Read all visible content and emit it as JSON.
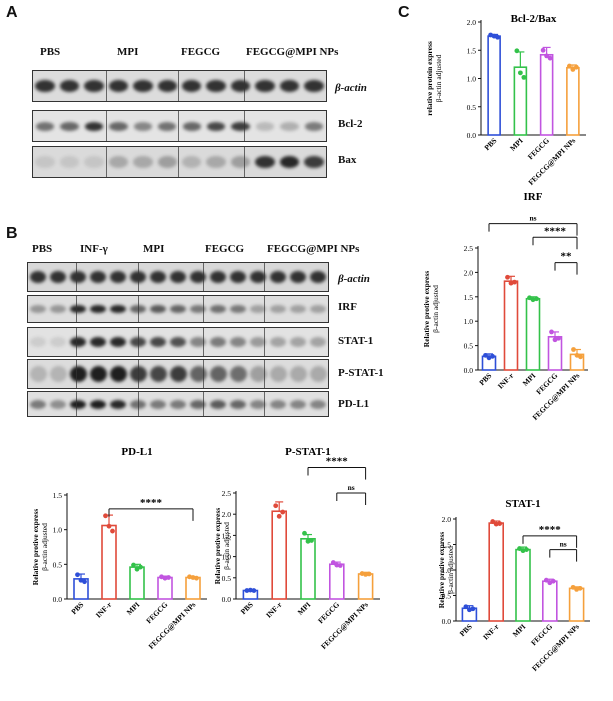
{
  "panels": {
    "a": "A",
    "b": "B",
    "c": "C"
  },
  "panel_a": {
    "groups": [
      "PBS",
      "MPI",
      "FEGCG",
      "FEGCG@MPI NPs"
    ],
    "blots": [
      "β-actin",
      "Bcl-2",
      "Bax"
    ]
  },
  "panel_b": {
    "groups": [
      "PBS",
      "INF-γ",
      "MPI",
      "FEGCG",
      "FEGCG@MPI NPs"
    ],
    "blots": [
      "β-actin",
      "IRF",
      "STAT-1",
      "P-STAT-1",
      "PD-L1"
    ]
  },
  "chart_data": [
    {
      "id": "bcl2bax",
      "type": "bar",
      "title": "Bcl-2/Bax",
      "ylabel": "relative protein express β-actin adjusted",
      "categories": [
        "PBS",
        "MPI",
        "FEGCG",
        "FEGCG@MPI NPs"
      ],
      "values": [
        1.75,
        1.2,
        1.42,
        1.19
      ],
      "errors": [
        0.03,
        0.27,
        0.13,
        0.05
      ],
      "points": [
        [
          1.77,
          1.75,
          1.73
        ],
        [
          1.49,
          1.1,
          1.02
        ],
        [
          1.5,
          1.4,
          1.36
        ],
        [
          1.22,
          1.16,
          1.2
        ]
      ],
      "ylim": [
        0,
        2.0
      ],
      "yticks": [
        0.0,
        0.5,
        1.0,
        1.5,
        2.0
      ],
      "colors": [
        "#2e4fd8",
        "#33c24a",
        "#c155e0",
        "#f5a03c"
      ],
      "significance": []
    },
    {
      "id": "irf",
      "type": "bar",
      "title": "IRF",
      "ylabel": "Relative protive express β-actin adjusted",
      "categories": [
        "PBS",
        "INF-r",
        "MPI",
        "FEGCG",
        "FEGCG@MPI NPs"
      ],
      "values": [
        0.28,
        1.82,
        1.46,
        0.68,
        0.32
      ],
      "errors": [
        0.05,
        0.1,
        0.04,
        0.1,
        0.1
      ],
      "points": [
        [
          0.3,
          0.25,
          0.28
        ],
        [
          1.9,
          1.78,
          1.8
        ],
        [
          1.48,
          1.44,
          1.46
        ],
        [
          0.78,
          0.62,
          0.65
        ],
        [
          0.42,
          0.3,
          0.27
        ]
      ],
      "ylim": [
        0,
        2.5
      ],
      "yticks": [
        0.0,
        0.5,
        1.0,
        1.5,
        2.0,
        2.5
      ],
      "colors": [
        "#2e4fd8",
        "#e04a3a",
        "#33c24a",
        "#c155e0",
        "#f5a03c"
      ],
      "significance": [
        {
          "from": 0,
          "to": 4,
          "label": "ns",
          "y": 3.0
        },
        {
          "from": 2,
          "to": 4,
          "label": "****",
          "y": 2.72
        },
        {
          "from": 3,
          "to": 4,
          "label": "**",
          "y": 2.2
        }
      ]
    },
    {
      "id": "pdl1",
      "type": "bar",
      "title": "PD-L1",
      "ylabel": "Relative protive express β-actin adjusted",
      "categories": [
        "PBS",
        "INF-r",
        "MPI",
        "FEGCG",
        "FEGCG@MPI NPs"
      ],
      "values": [
        0.29,
        1.06,
        0.46,
        0.31,
        0.31
      ],
      "errors": [
        0.07,
        0.15,
        0.04,
        0.02,
        0.01
      ],
      "points": [
        [
          0.35,
          0.27,
          0.25
        ],
        [
          1.2,
          1.05,
          0.98
        ],
        [
          0.49,
          0.43,
          0.46
        ],
        [
          0.32,
          0.3,
          0.31
        ],
        [
          0.32,
          0.31,
          0.3
        ]
      ],
      "ylim": [
        0,
        1.5
      ],
      "yticks": [
        0.0,
        0.5,
        1.0,
        1.5
      ],
      "colors": [
        "#2e4fd8",
        "#e04a3a",
        "#33c24a",
        "#c155e0",
        "#f5a03c"
      ],
      "significance": [
        {
          "from": 1,
          "to": 4,
          "label": "****",
          "y": 1.3
        }
      ]
    },
    {
      "id": "pstat1",
      "type": "bar",
      "title": "P-STAT-1",
      "ylabel": "Relative protive express β-actin adjusted",
      "categories": [
        "PBS",
        "INF-r",
        "MPI",
        "FEGCG",
        "FEGCG@MPI NPs"
      ],
      "values": [
        0.2,
        2.07,
        1.42,
        0.82,
        0.59
      ],
      "errors": [
        0.02,
        0.22,
        0.1,
        0.05,
        0.04
      ],
      "points": [
        [
          0.2,
          0.21,
          0.2
        ],
        [
          2.2,
          1.95,
          2.05
        ],
        [
          1.55,
          1.36,
          1.38
        ],
        [
          0.86,
          0.8,
          0.79
        ],
        [
          0.6,
          0.58,
          0.59
        ]
      ],
      "ylim": [
        0,
        2.5
      ],
      "yticks": [
        0.0,
        0.5,
        1.0,
        1.5,
        2.0,
        2.5
      ],
      "colors": [
        "#2e4fd8",
        "#e04a3a",
        "#33c24a",
        "#c155e0",
        "#f5a03c"
      ],
      "significance": [
        {
          "from": 2,
          "to": 4,
          "label": "****",
          "y": 3.1
        },
        {
          "from": 3,
          "to": 4,
          "label": "ns",
          "y": 2.5
        }
      ]
    },
    {
      "id": "stat1",
      "type": "bar",
      "title": "STAT-1",
      "ylabel": "Relative protive express β-actin adjusted",
      "categories": [
        "PBS",
        "INF-r",
        "MPI",
        "FEGCG",
        "FEGCG@MPI NPs"
      ],
      "values": [
        0.25,
        1.92,
        1.4,
        0.78,
        0.64
      ],
      "errors": [
        0.05,
        0.04,
        0.05,
        0.04,
        0.03
      ],
      "points": [
        [
          0.28,
          0.22,
          0.24
        ],
        [
          1.95,
          1.9,
          1.91
        ],
        [
          1.42,
          1.38,
          1.4
        ],
        [
          0.8,
          0.75,
          0.78
        ],
        [
          0.66,
          0.62,
          0.64
        ]
      ],
      "ylim": [
        0,
        2.0
      ],
      "yticks": [
        0.0,
        0.5,
        1.0,
        1.5,
        2.0
      ],
      "colors": [
        "#2e4fd8",
        "#e04a3a",
        "#33c24a",
        "#c155e0",
        "#f5a03c"
      ],
      "significance": [
        {
          "from": 2,
          "to": 4,
          "label": "****",
          "y": 1.67
        },
        {
          "from": 3,
          "to": 4,
          "label": "ns",
          "y": 1.4
        }
      ]
    }
  ]
}
